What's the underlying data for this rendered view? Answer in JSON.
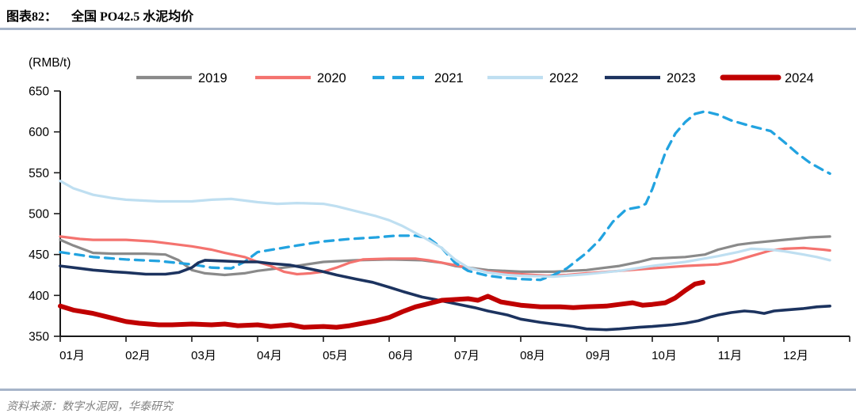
{
  "header": {
    "figure_label": "图表82：",
    "title": "全国 PO42.5 水泥均价"
  },
  "footer": {
    "source": "资料来源：数字水泥网，华泰研究"
  },
  "style_colors": {
    "divider_rule": "#A6B4C9",
    "axis": "#1a1a1a",
    "tick_text": "#000000",
    "source_text": "#808080"
  },
  "chart_data": {
    "type": "line",
    "title": "全国 PO42.5 水泥均价",
    "unit_label": "(RMB/t)",
    "xlabel": "",
    "ylabel": "(RMB/t)",
    "ylim": [
      350,
      650
    ],
    "y_ticks": [
      350,
      400,
      450,
      500,
      550,
      600,
      650
    ],
    "xlim": [
      1,
      13
    ],
    "x_tick_labels": [
      "01月",
      "02月",
      "03月",
      "04月",
      "05月",
      "06月",
      "07月",
      "08月",
      "09月",
      "10月",
      "11月",
      "12月"
    ],
    "grid": false,
    "legend_position": "top",
    "series": [
      {
        "name": "2019",
        "color": "#8A8A8A",
        "line_style": "solid",
        "line_width": 3.2,
        "points": [
          [
            1,
            468
          ],
          [
            1.2,
            461
          ],
          [
            1.5,
            452
          ],
          [
            1.8,
            451
          ],
          [
            2,
            451
          ],
          [
            2.3,
            451
          ],
          [
            2.6,
            450
          ],
          [
            2.8,
            443
          ],
          [
            3,
            431
          ],
          [
            3.2,
            427
          ],
          [
            3.5,
            425
          ],
          [
            3.8,
            427
          ],
          [
            4,
            430
          ],
          [
            4.5,
            435
          ],
          [
            5,
            441
          ],
          [
            5.5,
            443
          ],
          [
            6,
            444
          ],
          [
            6.5,
            443
          ],
          [
            6.8,
            440
          ],
          [
            7,
            436
          ],
          [
            7.5,
            431
          ],
          [
            8,
            429
          ],
          [
            8.5,
            429
          ],
          [
            9,
            431
          ],
          [
            9.5,
            436
          ],
          [
            9.8,
            441
          ],
          [
            10,
            445
          ],
          [
            10.5,
            447
          ],
          [
            10.8,
            450
          ],
          [
            11,
            456
          ],
          [
            11.3,
            462
          ],
          [
            11.5,
            464
          ],
          [
            12,
            468
          ],
          [
            12.4,
            471
          ],
          [
            12.7,
            472
          ]
        ]
      },
      {
        "name": "2020",
        "color": "#F4736F",
        "line_style": "solid",
        "line_width": 3.2,
        "points": [
          [
            1,
            472
          ],
          [
            1.3,
            469
          ],
          [
            1.5,
            468
          ],
          [
            2,
            468
          ],
          [
            2.4,
            466
          ],
          [
            2.7,
            463
          ],
          [
            3,
            460
          ],
          [
            3.3,
            456
          ],
          [
            3.5,
            452
          ],
          [
            3.8,
            447
          ],
          [
            4,
            441
          ],
          [
            4.2,
            436
          ],
          [
            4.4,
            429
          ],
          [
            4.6,
            426
          ],
          [
            4.8,
            427
          ],
          [
            5,
            429
          ],
          [
            5.2,
            434
          ],
          [
            5.4,
            440
          ],
          [
            5.6,
            444
          ],
          [
            6,
            445
          ],
          [
            6.4,
            445
          ],
          [
            6.6,
            443
          ],
          [
            7,
            437
          ],
          [
            7.3,
            432
          ],
          [
            7.5,
            429
          ],
          [
            8,
            426
          ],
          [
            8.4,
            424
          ],
          [
            8.7,
            425
          ],
          [
            9,
            427
          ],
          [
            9.5,
            430
          ],
          [
            10,
            433
          ],
          [
            10.5,
            436
          ],
          [
            11,
            438
          ],
          [
            11.2,
            441
          ],
          [
            11.5,
            448
          ],
          [
            11.8,
            455
          ],
          [
            12,
            457
          ],
          [
            12.3,
            458
          ],
          [
            12.6,
            456
          ],
          [
            12.7,
            455
          ]
        ]
      },
      {
        "name": "2021",
        "color": "#22A3E0",
        "line_style": "dashed",
        "line_width": 3.3,
        "points": [
          [
            1,
            453
          ],
          [
            1.5,
            447
          ],
          [
            2,
            444
          ],
          [
            2.5,
            442
          ],
          [
            3,
            438
          ],
          [
            3.3,
            434
          ],
          [
            3.6,
            433
          ],
          [
            3.8,
            441
          ],
          [
            4,
            453
          ],
          [
            4.3,
            457
          ],
          [
            4.6,
            461
          ],
          [
            5,
            466
          ],
          [
            5.4,
            469
          ],
          [
            5.8,
            471
          ],
          [
            6.1,
            473
          ],
          [
            6.4,
            473
          ],
          [
            6.6,
            470
          ],
          [
            6.8,
            458
          ],
          [
            7,
            440
          ],
          [
            7.2,
            430
          ],
          [
            7.5,
            424
          ],
          [
            7.8,
            421
          ],
          [
            8,
            420
          ],
          [
            8.3,
            419
          ],
          [
            8.5,
            425
          ],
          [
            8.7,
            433
          ],
          [
            9,
            452
          ],
          [
            9.2,
            468
          ],
          [
            9.4,
            490
          ],
          [
            9.6,
            505
          ],
          [
            9.8,
            508
          ],
          [
            9.9,
            512
          ],
          [
            10,
            530
          ],
          [
            10.2,
            575
          ],
          [
            10.35,
            598
          ],
          [
            10.5,
            612
          ],
          [
            10.65,
            622
          ],
          [
            10.8,
            625
          ],
          [
            11,
            621
          ],
          [
            11.2,
            614
          ],
          [
            11.5,
            607
          ],
          [
            11.8,
            601
          ],
          [
            12,
            588
          ],
          [
            12.2,
            574
          ],
          [
            12.4,
            562
          ],
          [
            12.6,
            553
          ],
          [
            12.7,
            549
          ]
        ]
      },
      {
        "name": "2022",
        "color": "#BFDFF1",
        "line_style": "solid",
        "line_width": 3.2,
        "points": [
          [
            1,
            540
          ],
          [
            1.2,
            531
          ],
          [
            1.5,
            523
          ],
          [
            1.8,
            519
          ],
          [
            2,
            517
          ],
          [
            2.5,
            515
          ],
          [
            3,
            515
          ],
          [
            3.3,
            517
          ],
          [
            3.6,
            518
          ],
          [
            4,
            514
          ],
          [
            4.3,
            512
          ],
          [
            4.6,
            513
          ],
          [
            5,
            512
          ],
          [
            5.2,
            509
          ],
          [
            5.5,
            503
          ],
          [
            5.8,
            497
          ],
          [
            6,
            492
          ],
          [
            6.2,
            485
          ],
          [
            6.5,
            472
          ],
          [
            6.8,
            458
          ],
          [
            7,
            444
          ],
          [
            7.2,
            434
          ],
          [
            7.5,
            428
          ],
          [
            7.8,
            425
          ],
          [
            8,
            424
          ],
          [
            8.5,
            423
          ],
          [
            9,
            426
          ],
          [
            9.5,
            430
          ],
          [
            10,
            436
          ],
          [
            10.5,
            441
          ],
          [
            11,
            448
          ],
          [
            11.3,
            453
          ],
          [
            11.5,
            457
          ],
          [
            11.8,
            456
          ],
          [
            12,
            454
          ],
          [
            12.3,
            450
          ],
          [
            12.5,
            447
          ],
          [
            12.7,
            443
          ]
        ]
      },
      {
        "name": "2023",
        "color": "#1C335F",
        "line_style": "solid",
        "line_width": 3.6,
        "points": [
          [
            1,
            436
          ],
          [
            1.3,
            433
          ],
          [
            1.5,
            431
          ],
          [
            1.8,
            429
          ],
          [
            2,
            428
          ],
          [
            2.3,
            426
          ],
          [
            2.6,
            426
          ],
          [
            2.8,
            428
          ],
          [
            3,
            434
          ],
          [
            3.1,
            440
          ],
          [
            3.2,
            443
          ],
          [
            3.5,
            442
          ],
          [
            3.8,
            441
          ],
          [
            4,
            441
          ],
          [
            4.2,
            439
          ],
          [
            4.5,
            437
          ],
          [
            4.7,
            434
          ],
          [
            5,
            429
          ],
          [
            5.2,
            425
          ],
          [
            5.5,
            420
          ],
          [
            5.75,
            416
          ],
          [
            6,
            410
          ],
          [
            6.2,
            405
          ],
          [
            6.5,
            398
          ],
          [
            6.7,
            395
          ],
          [
            7,
            390
          ],
          [
            7.3,
            385
          ],
          [
            7.5,
            381
          ],
          [
            7.8,
            376
          ],
          [
            8,
            371
          ],
          [
            8.3,
            367
          ],
          [
            8.5,
            365
          ],
          [
            8.8,
            362
          ],
          [
            9,
            359
          ],
          [
            9.3,
            358
          ],
          [
            9.5,
            359
          ],
          [
            9.8,
            361
          ],
          [
            10,
            362
          ],
          [
            10.3,
            364
          ],
          [
            10.5,
            366
          ],
          [
            10.7,
            369
          ],
          [
            10.9,
            374
          ],
          [
            11,
            376
          ],
          [
            11.2,
            379
          ],
          [
            11.4,
            381
          ],
          [
            11.55,
            380
          ],
          [
            11.7,
            378
          ],
          [
            11.85,
            381
          ],
          [
            12,
            382
          ],
          [
            12.3,
            384
          ],
          [
            12.5,
            386
          ],
          [
            12.7,
            387
          ]
        ]
      },
      {
        "name": "2024",
        "color": "#C00000",
        "line_style": "solid",
        "line_width": 6,
        "points": [
          [
            1,
            387
          ],
          [
            1.2,
            382
          ],
          [
            1.5,
            378
          ],
          [
            1.7,
            374
          ],
          [
            2,
            368
          ],
          [
            2.2,
            366
          ],
          [
            2.5,
            364
          ],
          [
            2.7,
            364
          ],
          [
            3,
            365
          ],
          [
            3.3,
            364
          ],
          [
            3.5,
            365
          ],
          [
            3.7,
            363
          ],
          [
            4,
            364
          ],
          [
            4.2,
            362
          ],
          [
            4.5,
            364
          ],
          [
            4.7,
            361
          ],
          [
            5,
            362
          ],
          [
            5.2,
            361
          ],
          [
            5.4,
            363
          ],
          [
            5.6,
            366
          ],
          [
            5.8,
            369
          ],
          [
            6,
            373
          ],
          [
            6.2,
            380
          ],
          [
            6.4,
            386
          ],
          [
            6.6,
            390
          ],
          [
            6.8,
            394
          ],
          [
            7,
            395
          ],
          [
            7.2,
            396
          ],
          [
            7.35,
            394
          ],
          [
            7.5,
            399
          ],
          [
            7.7,
            392
          ],
          [
            8,
            388
          ],
          [
            8.3,
            386
          ],
          [
            8.6,
            386
          ],
          [
            8.8,
            385
          ],
          [
            9,
            386
          ],
          [
            9.3,
            387
          ],
          [
            9.5,
            389
          ],
          [
            9.7,
            391
          ],
          [
            9.85,
            388
          ],
          [
            10,
            389
          ],
          [
            10.2,
            391
          ],
          [
            10.35,
            397
          ],
          [
            10.5,
            406
          ],
          [
            10.65,
            414
          ],
          [
            10.77,
            416
          ]
        ]
      }
    ]
  }
}
